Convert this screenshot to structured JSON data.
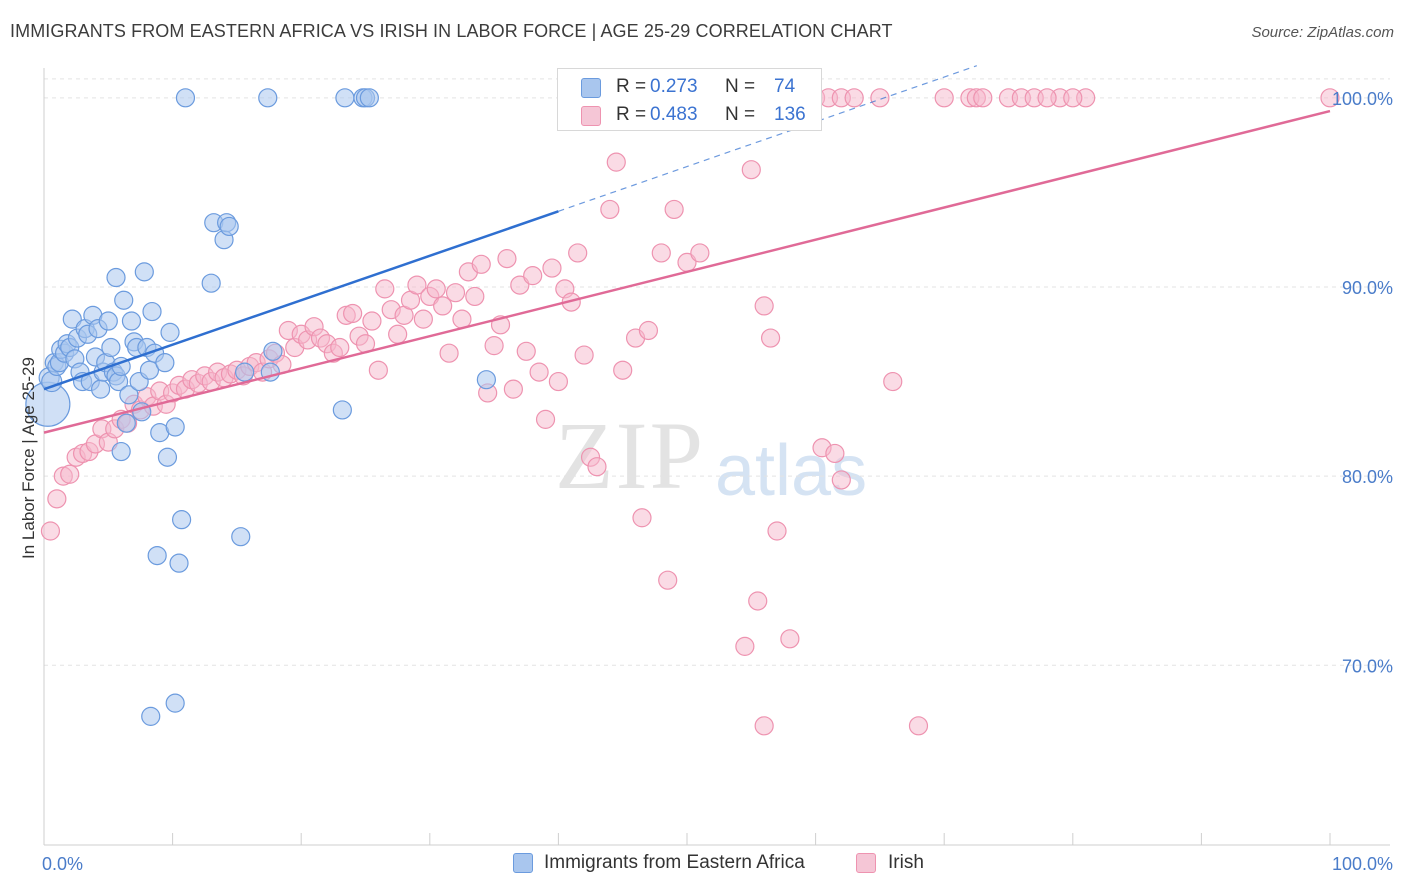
{
  "title": "IMMIGRANTS FROM EASTERN AFRICA VS IRISH IN LABOR FORCE | AGE 25-29 CORRELATION CHART",
  "source": "Source: ZipAtlas.com",
  "watermark": {
    "zip": "ZIP",
    "atlas": "atlas"
  },
  "legend": {
    "rows": [
      {
        "r_label": "R =",
        "r_value": "0.273",
        "n_label": "N =",
        "n_value": "74"
      },
      {
        "r_label": "R =",
        "r_value": "0.483",
        "n_label": "N =",
        "n_value": "136"
      }
    ]
  },
  "bottom_legend": [
    {
      "label": "Immigrants from Eastern Africa"
    },
    {
      "label": "Irish"
    }
  ],
  "colors": {
    "series1_fill": "#a9c6ee",
    "series1_stroke": "#6b9bde",
    "series1_line": "#2f6fd0",
    "series2_fill": "#f5b8cb",
    "series2_stroke": "#ee93b0",
    "series2_line": "#e06a97",
    "tick_text": "#4a7cc9",
    "grid": "#e3e3e3"
  },
  "chart_data": {
    "type": "scatter",
    "title": "IMMIGRANTS FROM EASTERN AFRICA VS IRISH IN LABOR FORCE | AGE 25-29 CORRELATION CHART",
    "xlabel": "",
    "ylabel": "In Labor Force | Age 25-29",
    "xlim": [
      0,
      100
    ],
    "ylim": [
      60.5,
      102
    ],
    "x_tick_labels": [
      "0.0%",
      "100.0%"
    ],
    "y_ticks": [
      70,
      80,
      90,
      100
    ],
    "y_tick_labels": [
      "70.0%",
      "80.0%",
      "90.0%",
      "100.0%"
    ],
    "grid": true,
    "series": [
      {
        "name": "Immigrants from Eastern Africa",
        "r": 0.273,
        "n": 74,
        "trend": {
          "x0": 0,
          "y0": 84.6,
          "x1": 40,
          "y1": 94.0,
          "dashed_to": [
            100,
            108.2
          ]
        },
        "points": [
          [
            0.3,
            83.8,
            22
          ],
          [
            0.4,
            85.2,
            10
          ],
          [
            0.6,
            85.0,
            10
          ],
          [
            0.8,
            86.0,
            9
          ],
          [
            1.0,
            85.8,
            9
          ],
          [
            1.2,
            86.0,
            9
          ],
          [
            1.3,
            86.7,
            9
          ],
          [
            1.6,
            86.5,
            9
          ],
          [
            1.8,
            87.0,
            9
          ],
          [
            2.0,
            86.8,
            9
          ],
          [
            2.2,
            88.3,
            9
          ],
          [
            2.4,
            86.2,
            9
          ],
          [
            2.6,
            87.3,
            9
          ],
          [
            2.8,
            85.5,
            9
          ],
          [
            3.0,
            85.0,
            9
          ],
          [
            3.2,
            87.8,
            9
          ],
          [
            3.4,
            87.5,
            9
          ],
          [
            3.6,
            85.0,
            9
          ],
          [
            3.8,
            88.5,
            9
          ],
          [
            4.0,
            86.3,
            9
          ],
          [
            4.2,
            87.8,
            9
          ],
          [
            4.4,
            84.6,
            9
          ],
          [
            4.6,
            85.5,
            9
          ],
          [
            4.8,
            86.0,
            9
          ],
          [
            5.0,
            88.2,
            9
          ],
          [
            5.2,
            86.8,
            9
          ],
          [
            5.4,
            85.5,
            9
          ],
          [
            5.6,
            85.3,
            9
          ],
          [
            5.8,
            85.0,
            9
          ],
          [
            6.0,
            85.8,
            9
          ],
          [
            5.6,
            90.5,
            9
          ],
          [
            6.0,
            81.3,
            9
          ],
          [
            6.2,
            89.3,
            9
          ],
          [
            6.4,
            82.8,
            9
          ],
          [
            6.6,
            84.3,
            9
          ],
          [
            6.8,
            88.2,
            9
          ],
          [
            7.0,
            87.1,
            9
          ],
          [
            7.2,
            86.8,
            9
          ],
          [
            7.4,
            85.0,
            9
          ],
          [
            7.6,
            83.4,
            9
          ],
          [
            7.8,
            90.8,
            9
          ],
          [
            8.0,
            86.8,
            9
          ],
          [
            8.2,
            85.6,
            9
          ],
          [
            8.4,
            88.7,
            9
          ],
          [
            8.6,
            86.5,
            9
          ],
          [
            8.8,
            75.8,
            9
          ],
          [
            9.0,
            82.3,
            9
          ],
          [
            9.4,
            86.0,
            9
          ],
          [
            9.6,
            81.0,
            9
          ],
          [
            9.8,
            87.6,
            9
          ],
          [
            10.2,
            82.6,
            9
          ],
          [
            10.5,
            75.4,
            9
          ],
          [
            10.7,
            77.7,
            9
          ],
          [
            11.0,
            100.0,
            9
          ],
          [
            10.2,
            68.0,
            9
          ],
          [
            8.3,
            67.3,
            9
          ],
          [
            13.0,
            90.2,
            9
          ],
          [
            13.2,
            93.4,
            9
          ],
          [
            14.0,
            92.5,
            9
          ],
          [
            14.2,
            93.4,
            9
          ],
          [
            14.4,
            93.2,
            9
          ],
          [
            15.3,
            76.8,
            9
          ],
          [
            15.6,
            85.5,
            9
          ],
          [
            17.4,
            100.0,
            9
          ],
          [
            17.8,
            86.6,
            9
          ],
          [
            17.6,
            85.5,
            9
          ],
          [
            23.2,
            83.5,
            9
          ],
          [
            23.4,
            100.0,
            9
          ],
          [
            24.8,
            100.0,
            9
          ],
          [
            25.0,
            100.0,
            9
          ],
          [
            25.3,
            100.0,
            9
          ],
          [
            34.4,
            85.1,
            9
          ]
        ]
      },
      {
        "name": "Irish",
        "r": 0.483,
        "n": 136,
        "trend": {
          "x0": 0,
          "y0": 82.3,
          "x1": 100,
          "y1": 99.3
        },
        "points": [
          [
            0.5,
            77.1,
            9
          ],
          [
            1.0,
            78.8,
            9
          ],
          [
            1.5,
            80.0,
            9
          ],
          [
            2.0,
            80.1,
            9
          ],
          [
            2.5,
            81.0,
            9
          ],
          [
            3.0,
            81.2,
            9
          ],
          [
            3.5,
            81.3,
            9
          ],
          [
            4.0,
            81.7,
            9
          ],
          [
            4.5,
            82.5,
            9
          ],
          [
            5.0,
            81.8,
            9
          ],
          [
            5.5,
            82.5,
            9
          ],
          [
            6.0,
            83.0,
            9
          ],
          [
            6.5,
            82.8,
            9
          ],
          [
            7.0,
            83.8,
            9
          ],
          [
            7.5,
            83.5,
            9
          ],
          [
            8.0,
            84.2,
            9
          ],
          [
            8.5,
            83.7,
            9
          ],
          [
            9.0,
            84.5,
            9
          ],
          [
            9.5,
            83.8,
            9
          ],
          [
            10.0,
            84.4,
            9
          ],
          [
            10.5,
            84.8,
            9
          ],
          [
            11.0,
            84.6,
            9
          ],
          [
            11.5,
            85.1,
            9
          ],
          [
            12.0,
            84.9,
            9
          ],
          [
            12.5,
            85.3,
            9
          ],
          [
            13.0,
            85.0,
            9
          ],
          [
            13.5,
            85.5,
            9
          ],
          [
            14.0,
            85.2,
            9
          ],
          [
            14.5,
            85.4,
            9
          ],
          [
            15.0,
            85.6,
            9
          ],
          [
            15.5,
            85.3,
            9
          ],
          [
            16.0,
            85.8,
            9
          ],
          [
            16.5,
            86.0,
            9
          ],
          [
            17.0,
            85.5,
            9
          ],
          [
            17.5,
            86.2,
            9
          ],
          [
            18.0,
            86.5,
            9
          ],
          [
            18.5,
            85.9,
            9
          ],
          [
            19.0,
            87.7,
            9
          ],
          [
            19.5,
            86.8,
            9
          ],
          [
            20.0,
            87.5,
            9
          ],
          [
            20.5,
            87.2,
            9
          ],
          [
            21.0,
            87.9,
            9
          ],
          [
            21.5,
            87.3,
            9
          ],
          [
            22.0,
            87.0,
            9
          ],
          [
            22.5,
            86.5,
            9
          ],
          [
            23.0,
            86.8,
            9
          ],
          [
            23.5,
            88.5,
            9
          ],
          [
            24.0,
            88.6,
            9
          ],
          [
            24.5,
            87.4,
            9
          ],
          [
            25.0,
            87.0,
            9
          ],
          [
            25.5,
            88.2,
            9
          ],
          [
            26.0,
            85.6,
            9
          ],
          [
            26.5,
            89.9,
            9
          ],
          [
            27.0,
            88.8,
            9
          ],
          [
            27.5,
            87.5,
            9
          ],
          [
            28.0,
            88.5,
            9
          ],
          [
            28.5,
            89.3,
            9
          ],
          [
            29.0,
            90.1,
            9
          ],
          [
            29.5,
            88.3,
            9
          ],
          [
            30.0,
            89.5,
            9
          ],
          [
            30.5,
            89.9,
            9
          ],
          [
            31.0,
            89.0,
            9
          ],
          [
            31.5,
            86.5,
            9
          ],
          [
            32.0,
            89.7,
            9
          ],
          [
            32.5,
            88.3,
            9
          ],
          [
            33.0,
            90.8,
            9
          ],
          [
            33.5,
            89.5,
            9
          ],
          [
            34.0,
            91.2,
            9
          ],
          [
            34.5,
            84.4,
            9
          ],
          [
            35.0,
            86.9,
            9
          ],
          [
            35.5,
            88.0,
            9
          ],
          [
            36.0,
            91.5,
            9
          ],
          [
            36.5,
            84.6,
            9
          ],
          [
            37.0,
            90.1,
            9
          ],
          [
            37.5,
            86.6,
            9
          ],
          [
            38.0,
            90.6,
            9
          ],
          [
            38.5,
            85.5,
            9
          ],
          [
            39.0,
            83.0,
            9
          ],
          [
            39.5,
            91.0,
            9
          ],
          [
            40.0,
            85.0,
            9
          ],
          [
            40.5,
            89.9,
            9
          ],
          [
            41.0,
            89.2,
            9
          ],
          [
            41.5,
            91.8,
            9
          ],
          [
            42.0,
            86.4,
            9
          ],
          [
            42.5,
            81.0,
            9
          ],
          [
            43.0,
            80.5,
            9
          ],
          [
            44.0,
            94.1,
            9
          ],
          [
            44.5,
            96.6,
            9
          ],
          [
            45.0,
            85.6,
            9
          ],
          [
            46.0,
            87.3,
            9
          ],
          [
            46.5,
            77.8,
            9
          ],
          [
            47.0,
            87.7,
            9
          ],
          [
            47.5,
            100.0,
            9
          ],
          [
            48.0,
            91.8,
            9
          ],
          [
            48.5,
            74.5,
            9
          ],
          [
            49.0,
            94.1,
            9
          ],
          [
            49.5,
            100.0,
            9
          ],
          [
            50.0,
            91.3,
            9
          ],
          [
            50.5,
            100.0,
            9
          ],
          [
            51.0,
            91.8,
            9
          ],
          [
            51.5,
            100.0,
            9
          ],
          [
            52.0,
            100.0,
            9
          ],
          [
            52.5,
            100.0,
            9
          ],
          [
            53.0,
            100.0,
            9
          ],
          [
            53.5,
            100.0,
            9
          ],
          [
            54.0,
            100.0,
            9
          ],
          [
            54.5,
            71.0,
            9
          ],
          [
            55.0,
            96.2,
            9
          ],
          [
            55.5,
            73.4,
            9
          ],
          [
            56.0,
            89.0,
            9
          ],
          [
            56.5,
            87.3,
            9
          ],
          [
            57.0,
            77.1,
            9
          ],
          [
            57.5,
            100.0,
            9
          ],
          [
            58.0,
            71.4,
            9
          ],
          [
            59.0,
            100.0,
            9
          ],
          [
            60.0,
            100.0,
            9
          ],
          [
            60.5,
            81.5,
            9
          ],
          [
            61.0,
            100.0,
            9
          ],
          [
            61.5,
            81.2,
            9
          ],
          [
            62.0,
            100.0,
            9
          ],
          [
            63.0,
            100.0,
            9
          ],
          [
            56.0,
            66.8,
            9
          ],
          [
            65.0,
            100.0,
            9
          ],
          [
            70.0,
            100.0,
            9
          ],
          [
            72.0,
            100.0,
            9
          ],
          [
            72.5,
            100.0,
            9
          ],
          [
            73.0,
            100.0,
            9
          ],
          [
            68.0,
            66.8,
            9
          ],
          [
            75.0,
            100.0,
            9
          ],
          [
            76.0,
            100.0,
            9
          ],
          [
            79.0,
            100.0,
            9
          ],
          [
            81.0,
            100.0,
            9
          ],
          [
            62.0,
            79.8,
            9
          ],
          [
            66.0,
            85.0,
            9
          ],
          [
            77.0,
            100.0,
            9
          ],
          [
            78.0,
            100.0,
            9
          ],
          [
            80.0,
            100.0,
            9
          ],
          [
            100.0,
            100.0,
            9
          ]
        ]
      }
    ]
  }
}
